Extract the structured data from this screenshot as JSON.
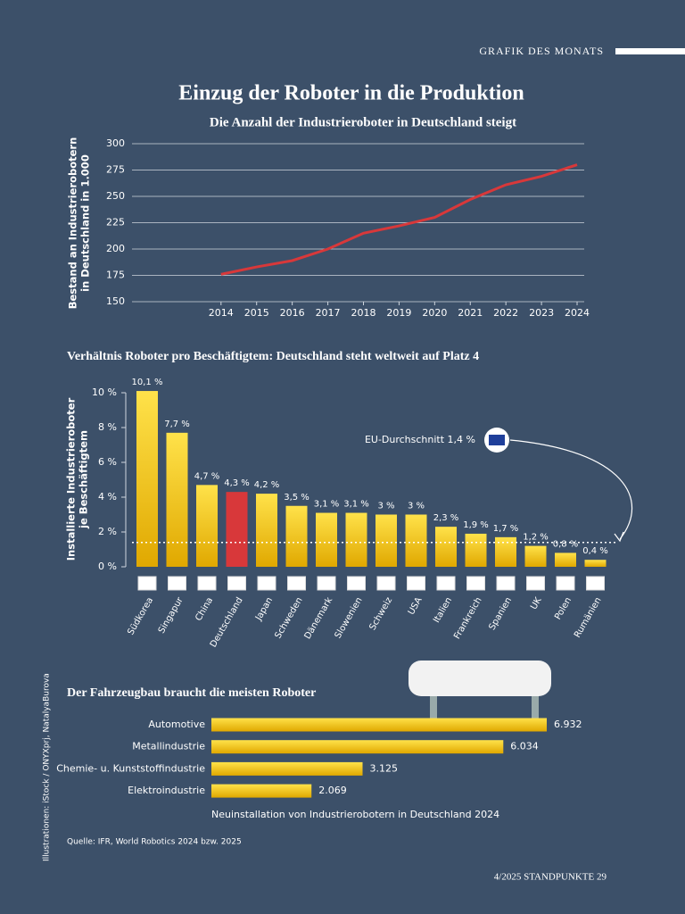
{
  "header": "GRAFIK DES MONATS",
  "title": "Einzug der Roboter in die Produktion",
  "chart_data": [
    {
      "type": "line",
      "title": "Die Anzahl der Industrieroboter in Deutschland steigt",
      "y_label": [
        "Bestand an Industrierobotern",
        "in Deutschland in 1.000"
      ],
      "x": [
        2014,
        2015,
        2016,
        2017,
        2018,
        2019,
        2020,
        2021,
        2022,
        2023,
        2024
      ],
      "values": [
        176,
        183,
        189,
        200,
        215,
        222,
        230,
        247,
        261,
        269,
        280
      ],
      "color": "#d8383a",
      "xlim": [
        2011.5,
        2024.2
      ],
      "xticks": [
        2014,
        2015,
        2016,
        2017,
        2018,
        2019,
        2020,
        2021,
        2022,
        2023,
        2024
      ],
      "ylim": [
        150,
        300
      ],
      "yticks": [
        150,
        175,
        200,
        225,
        250,
        275,
        300
      ],
      "grid": true
    },
    {
      "type": "bar",
      "title": "Verhältnis Roboter pro Beschäftigtem: Deutschland steht weltweit auf Platz 4",
      "y_label": [
        "Installierte Industrieroboter",
        "je Beschäftigtem"
      ],
      "categories": [
        "Südkorea",
        "Singapur",
        "China",
        "Deutschland",
        "Japan",
        "Schweden",
        "Dänemark",
        "Slowenien",
        "Schweiz",
        "USA",
        "Italien",
        "Frankreich",
        "Spanien",
        "UK",
        "Polen",
        "Rumänien"
      ],
      "values": [
        10.1,
        7.7,
        4.7,
        4.3,
        4.2,
        3.5,
        3.1,
        3.1,
        3,
        3,
        2.3,
        1.9,
        1.7,
        1.2,
        0.8,
        0.4
      ],
      "value_labels": [
        "10,1 %",
        "7,7 %",
        "4,7 %",
        "4,3 %",
        "4,2 %",
        "3,5 %",
        "3,1 %",
        "3,1 %",
        "3 %",
        "3 %",
        "2,3 %",
        "1,9 %",
        "1,7 %",
        "1,2 %",
        "0,8 %",
        "0,4 %"
      ],
      "colors": [
        "#f5c400",
        "#f5c400",
        "#f5c400",
        "#d8383a",
        "#f5c400",
        "#f5c400",
        "#f5c400",
        "#f5c400",
        "#f5c400",
        "#f5c400",
        "#f5c400",
        "#f5c400",
        "#f5c400",
        "#f5c400",
        "#f5c400",
        "#f5c400"
      ],
      "ylim": [
        0,
        10.3
      ],
      "yticks": [
        {
          "value": 0,
          "label": "0 %"
        },
        {
          "value": 2,
          "label": "2 %"
        },
        {
          "value": 4,
          "label": "4 %"
        },
        {
          "value": 6,
          "label": "6 %"
        },
        {
          "value": 8,
          "label": "8 %"
        },
        {
          "value": 10,
          "label": "10 %"
        }
      ],
      "reference_line": {
        "value": 1.4,
        "label": "EU-Durchschnitt 1,4 %"
      }
    },
    {
      "type": "hbar",
      "title": "Der Fahrzeugbau braucht die meisten Roboter",
      "x_label": "Neuinstallation von Industrierobotern in Deutschland 2024",
      "categories": [
        "Automotive",
        "Metallindustrie",
        "Chemie- u. Kunststoffindustrie",
        "Elektroindustrie"
      ],
      "values": [
        6932,
        6034,
        3125,
        2069
      ],
      "value_labels": [
        "6.932",
        "6.034",
        "3.125",
        "2.069"
      ],
      "color": "#f5c400"
    }
  ],
  "source": "Quelle: IFR, World Robotics 2024 bzw. 2025",
  "credit": "Illustrationen: iStock / ONYXprj, NatalyaBurova",
  "footer": "4/2025 STANDPUNKTE 29"
}
